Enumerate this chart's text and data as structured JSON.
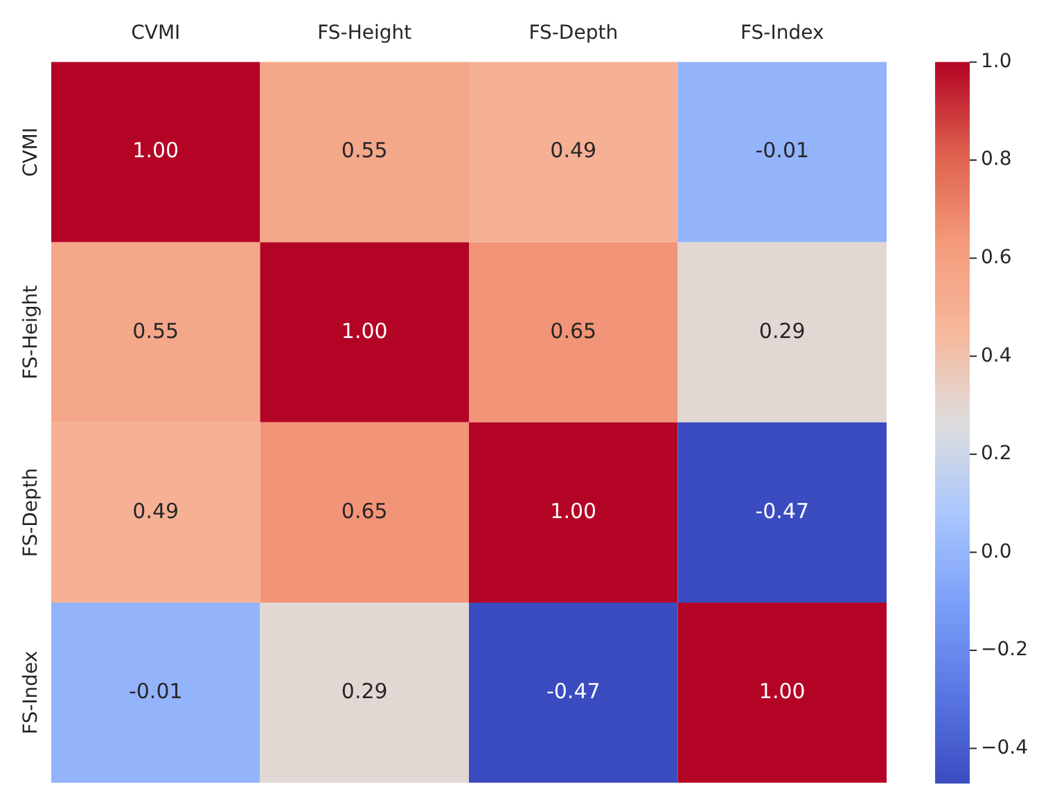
{
  "chart_data": {
    "type": "heatmap",
    "categories": [
      "CVMI",
      "FS-Height",
      "FS-Depth",
      "FS-Index"
    ],
    "y_categories": [
      "CVMI",
      "FS-Height",
      "FS-Depth",
      "FS-Index"
    ],
    "cells": [
      [
        1.0,
        0.55,
        0.49,
        -0.01
      ],
      [
        0.55,
        1.0,
        0.65,
        0.29
      ],
      [
        0.49,
        0.65,
        1.0,
        -0.47
      ],
      [
        -0.01,
        0.29,
        -0.47,
        1.0
      ]
    ],
    "clim": [
      -0.47,
      1.0
    ],
    "cticks": [
      -0.4,
      -0.2,
      {
        "value": 0,
        "label": "0.0"
      },
      0.2,
      0.4,
      0.6,
      0.8,
      {
        "value": 1,
        "label": "1.0"
      }
    ],
    "cell_labels": [
      [
        "1.00",
        "0.55",
        "0.49",
        "-0.01"
      ],
      [
        "0.55",
        "1.00",
        "0.65",
        "0.29"
      ],
      [
        "0.49",
        "0.65",
        "1.00",
        "-0.47"
      ],
      [
        "-0.01",
        "0.29",
        "-0.47",
        "1.00"
      ]
    ],
    "data_labels": true
  }
}
